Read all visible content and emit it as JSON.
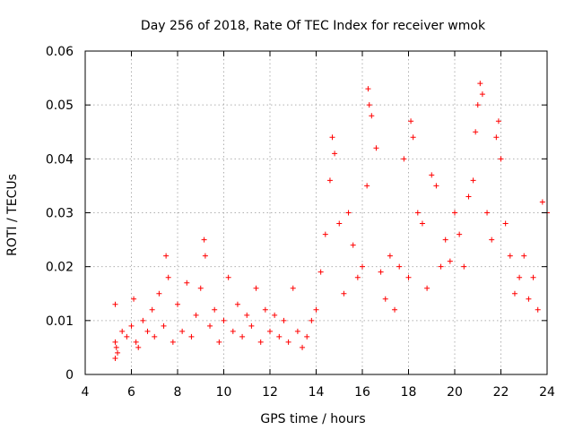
{
  "chart_data": {
    "type": "scatter",
    "title": "Day 256 of 2018, Rate Of TEC Index for receiver wmok",
    "xlabel": "GPS time / hours",
    "ylabel": "ROTI / TECUs",
    "xlim": [
      4,
      24
    ],
    "ylim": [
      0,
      0.06
    ],
    "xticks": [
      4,
      6,
      8,
      10,
      12,
      14,
      16,
      18,
      20,
      22,
      24
    ],
    "xtick_labels": [
      "4",
      "6",
      "8",
      "10",
      "12",
      "14",
      "16",
      "18",
      "20",
      "22",
      "24"
    ],
    "yticks": [
      0,
      0.01,
      0.02,
      0.03,
      0.04,
      0.05,
      0.06
    ],
    "ytick_labels": [
      "0",
      "0.01",
      "0.02",
      "0.03",
      "0.04",
      "0.05",
      "0.06"
    ],
    "grid": true,
    "marker": "plus",
    "color": "#ff0000",
    "series": [
      {
        "name": "ROTI",
        "x": [
          5.3,
          5.3,
          5.3,
          5.35,
          5.4,
          5.6,
          5.8,
          6.0,
          6.1,
          6.2,
          6.3,
          6.5,
          6.7,
          6.9,
          7.0,
          7.2,
          7.4,
          7.5,
          7.6,
          7.8,
          8.0,
          8.2,
          8.4,
          8.6,
          8.8,
          9.0,
          9.15,
          9.2,
          9.4,
          9.6,
          9.8,
          10.0,
          10.2,
          10.4,
          10.6,
          10.8,
          11.0,
          11.2,
          11.4,
          11.6,
          11.8,
          12.0,
          12.2,
          12.4,
          12.6,
          12.8,
          13.0,
          13.2,
          13.4,
          13.6,
          13.8,
          14.0,
          14.2,
          14.4,
          14.6,
          14.7,
          14.8,
          15.0,
          15.2,
          15.4,
          15.6,
          15.8,
          16.0,
          16.2,
          16.25,
          16.3,
          16.4,
          16.6,
          16.8,
          17.0,
          17.2,
          17.4,
          17.6,
          17.8,
          18.0,
          18.1,
          18.2,
          18.4,
          18.6,
          18.8,
          19.0,
          19.2,
          19.4,
          19.6,
          19.8,
          20.0,
          20.2,
          20.4,
          20.6,
          20.8,
          20.9,
          21.0,
          21.1,
          21.2,
          21.4,
          21.6,
          21.8,
          21.9,
          22.0,
          22.2,
          22.4,
          22.6,
          22.8,
          23.0,
          23.2,
          23.4,
          23.6,
          23.8,
          24.0
        ],
        "y": [
          0.013,
          0.006,
          0.003,
          0.005,
          0.004,
          0.008,
          0.007,
          0.009,
          0.014,
          0.006,
          0.005,
          0.01,
          0.008,
          0.012,
          0.007,
          0.015,
          0.009,
          0.022,
          0.018,
          0.006,
          0.013,
          0.008,
          0.017,
          0.007,
          0.011,
          0.016,
          0.025,
          0.022,
          0.009,
          0.012,
          0.006,
          0.01,
          0.018,
          0.008,
          0.013,
          0.007,
          0.011,
          0.009,
          0.016,
          0.006,
          0.012,
          0.008,
          0.011,
          0.007,
          0.01,
          0.006,
          0.016,
          0.008,
          0.005,
          0.007,
          0.01,
          0.012,
          0.019,
          0.026,
          0.036,
          0.044,
          0.041,
          0.028,
          0.015,
          0.03,
          0.024,
          0.018,
          0.02,
          0.035,
          0.053,
          0.05,
          0.048,
          0.042,
          0.019,
          0.014,
          0.022,
          0.012,
          0.02,
          0.04,
          0.018,
          0.047,
          0.044,
          0.03,
          0.028,
          0.016,
          0.037,
          0.035,
          0.02,
          0.025,
          0.021,
          0.03,
          0.026,
          0.02,
          0.033,
          0.036,
          0.045,
          0.05,
          0.054,
          0.052,
          0.03,
          0.025,
          0.044,
          0.047,
          0.04,
          0.028,
          0.022,
          0.015,
          0.018,
          0.022,
          0.014,
          0.018,
          0.012,
          0.032,
          0.03
        ]
      }
    ]
  }
}
